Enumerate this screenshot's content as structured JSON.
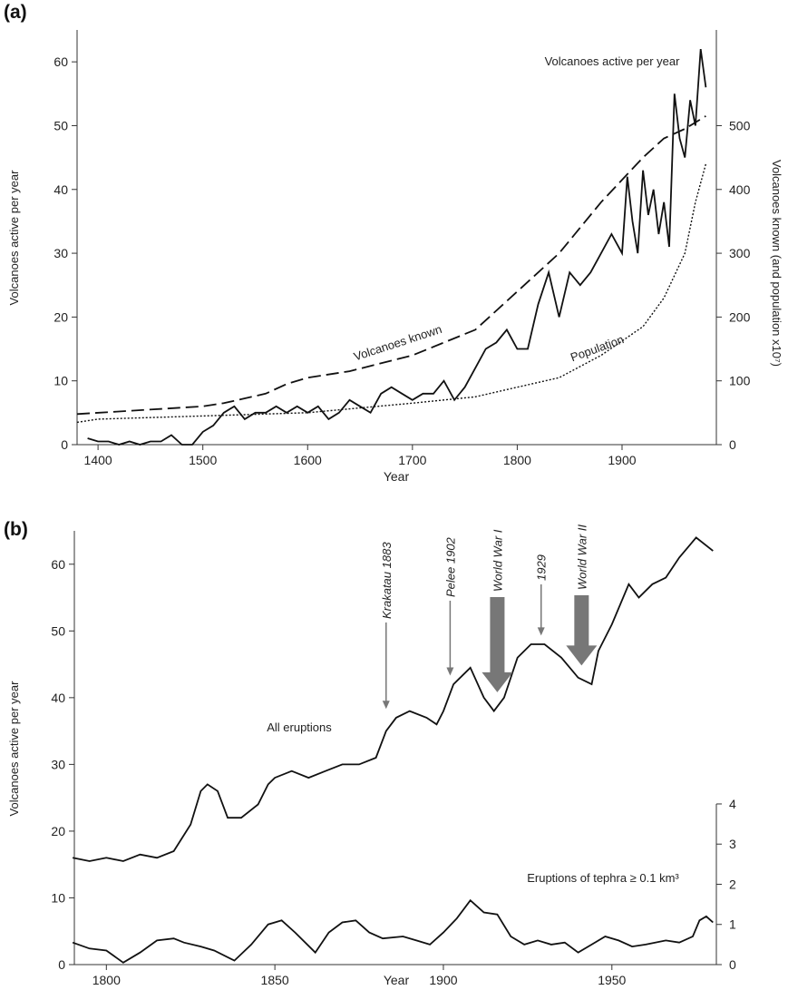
{
  "chart_data": [
    {
      "type": "line",
      "label": "(a)",
      "xlabel": "Year",
      "ylabel": "Volcanoes active per year",
      "y2label": "Volcanoes known (and population x10⁷)",
      "xlim": [
        1380,
        1990
      ],
      "ylim": [
        0,
        65
      ],
      "y2lim": [
        0,
        650
      ],
      "xticks": [
        1400,
        1500,
        1600,
        1700,
        1800,
        1900
      ],
      "yticks": [
        0,
        10,
        20,
        30,
        40,
        50,
        60
      ],
      "y2ticks": [
        0,
        100,
        200,
        300,
        400,
        500
      ],
      "series": [
        {
          "name": "Volcanoes active per year",
          "color": "#111",
          "dash": "solid",
          "x": [
            1390,
            1400,
            1410,
            1420,
            1430,
            1440,
            1450,
            1460,
            1470,
            1480,
            1490,
            1500,
            1510,
            1520,
            1530,
            1540,
            1550,
            1560,
            1570,
            1580,
            1590,
            1600,
            1610,
            1620,
            1630,
            1640,
            1650,
            1660,
            1670,
            1680,
            1690,
            1700,
            1710,
            1720,
            1730,
            1740,
            1750,
            1760,
            1770,
            1780,
            1790,
            1800,
            1810,
            1820,
            1830,
            1840,
            1850,
            1860,
            1870,
            1880,
            1890,
            1900,
            1905,
            1910,
            1915,
            1920,
            1925,
            1930,
            1935,
            1940,
            1945,
            1950,
            1955,
            1960,
            1965,
            1970,
            1975,
            1980
          ],
          "values": [
            1,
            0.5,
            0.5,
            0,
            0.5,
            0,
            0.5,
            0.5,
            1.5,
            0,
            0,
            2,
            3,
            5,
            6,
            4,
            5,
            5,
            6,
            5,
            6,
            5,
            6,
            4,
            5,
            7,
            6,
            5,
            8,
            9,
            8,
            7,
            8,
            8,
            10,
            7,
            9,
            12,
            15,
            16,
            18,
            15,
            15,
            22,
            27,
            20,
            27,
            25,
            27,
            30,
            33,
            30,
            42,
            35,
            30,
            43,
            36,
            40,
            33,
            38,
            31,
            55,
            48,
            45,
            54,
            50,
            62,
            56
          ]
        },
        {
          "name": "Volcanoes known",
          "color": "#111",
          "dash": "dashed",
          "axis": "y2",
          "x": [
            1380,
            1500,
            1520,
            1560,
            1580,
            1600,
            1640,
            1700,
            1760,
            1800,
            1840,
            1880,
            1920,
            1940,
            1960,
            1980
          ],
          "values": [
            48,
            60,
            65,
            80,
            95,
            105,
            115,
            140,
            180,
            240,
            300,
            380,
            450,
            480,
            495,
            515
          ]
        },
        {
          "name": "Population",
          "color": "#111",
          "dash": "dotted",
          "axis": "y2",
          "x": [
            1380,
            1400,
            1500,
            1600,
            1700,
            1760,
            1800,
            1840,
            1880,
            1920,
            1940,
            1960,
            1970,
            1980
          ],
          "values": [
            35,
            40,
            45,
            50,
            65,
            75,
            90,
            105,
            140,
            185,
            230,
            300,
            380,
            440
          ]
        }
      ]
    },
    {
      "type": "line",
      "label": "(b)",
      "xlabel": "Year",
      "ylabel": "Volcanoes active per year",
      "xlim": [
        1790.5,
        1981
      ],
      "ylim": [
        0,
        65
      ],
      "y2lim": [
        0,
        10.8
      ],
      "xticks": [
        1800,
        1850,
        1900,
        1950
      ],
      "yticks": [
        0,
        10,
        20,
        30,
        40,
        50,
        60
      ],
      "y2ticks": [
        0,
        1,
        2,
        3,
        4
      ],
      "series": [
        {
          "name": "All eruptions",
          "color": "#111",
          "dash": "solid",
          "x": [
            1790,
            1795,
            1800,
            1805,
            1810,
            1815,
            1820,
            1825,
            1828,
            1830,
            1833,
            1836,
            1840,
            1845,
            1848,
            1850,
            1855,
            1860,
            1865,
            1870,
            1875,
            1880,
            1883,
            1886,
            1890,
            1895,
            1898,
            1900,
            1903,
            1905,
            1908,
            1912,
            1915,
            1918,
            1922,
            1926,
            1930,
            1935,
            1940,
            1944,
            1946,
            1950,
            1955,
            1958,
            1962,
            1966,
            1970,
            1975,
            1980
          ],
          "values": [
            16,
            15.5,
            16,
            15.5,
            16.5,
            16,
            17,
            21,
            26,
            27,
            26,
            22,
            22,
            24,
            27,
            28,
            29,
            28,
            29,
            30,
            30,
            31,
            35,
            37,
            38,
            37,
            36,
            38,
            42,
            43,
            44.5,
            40,
            38,
            40,
            46,
            48,
            48,
            46,
            43,
            42,
            47,
            51,
            57,
            55,
            57,
            58,
            61,
            64,
            62
          ]
        },
        {
          "name": "Eruptions of tephra ≥ 0.1 km³",
          "color": "#111",
          "dash": "solid",
          "axis": "y2",
          "x": [
            1790,
            1795,
            1800,
            1805,
            1810,
            1815,
            1820,
            1823,
            1828,
            1832,
            1838,
            1843,
            1848,
            1852,
            1856,
            1862,
            1866,
            1870,
            1874,
            1878,
            1882,
            1888,
            1892,
            1896,
            1900,
            1904,
            1908,
            1912,
            1916,
            1920,
            1924,
            1928,
            1932,
            1936,
            1940,
            1944,
            1948,
            1952,
            1956,
            1960,
            1966,
            1970,
            1974,
            1976,
            1978,
            1980
          ],
          "values": [
            0.55,
            0.4,
            0.35,
            0.05,
            0.3,
            0.6,
            0.65,
            0.55,
            0.45,
            0.35,
            0.1,
            0.5,
            1.0,
            1.1,
            0.8,
            0.3,
            0.8,
            1.05,
            1.1,
            0.8,
            0.65,
            0.7,
            0.6,
            0.5,
            0.8,
            1.15,
            1.6,
            1.3,
            1.25,
            0.7,
            0.5,
            0.6,
            0.5,
            0.55,
            0.3,
            0.5,
            0.7,
            0.6,
            0.45,
            0.5,
            0.6,
            0.55,
            0.7,
            1.1,
            1.2,
            1.05
          ]
        }
      ],
      "annotations": [
        {
          "text": "Krakatau 1883",
          "style": "thin"
        },
        {
          "text": "Pelee 1902",
          "style": "thin"
        },
        {
          "text": "World War I",
          "style": "thick"
        },
        {
          "text": "1929",
          "style": "thin"
        },
        {
          "text": "World War II",
          "style": "thick"
        }
      ]
    }
  ]
}
